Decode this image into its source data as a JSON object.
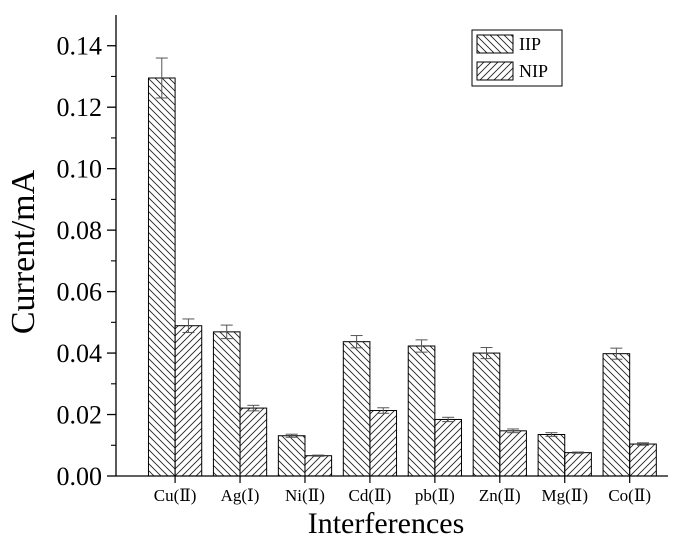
{
  "chart_data": {
    "type": "bar",
    "xlabel": "Interferences",
    "ylabel": "Current/mA",
    "categories": [
      "Cu(Ⅱ)",
      "Ag(Ⅰ)",
      "Ni(Ⅱ)",
      "Cd(Ⅱ)",
      "pb(Ⅱ)",
      "Zn(Ⅱ)",
      "Mg(Ⅱ)",
      "Co(Ⅱ)"
    ],
    "series": [
      {
        "name": "IIP",
        "values": [
          0.1295,
          0.0469,
          0.0131,
          0.0437,
          0.0423,
          0.04,
          0.0135,
          0.0398
        ],
        "errors": [
          0.0065,
          0.0022,
          0.0005,
          0.002,
          0.002,
          0.0018,
          0.0006,
          0.0018
        ],
        "hatch": "back-diagonal"
      },
      {
        "name": "NIP",
        "values": [
          0.0489,
          0.0221,
          0.0066,
          0.0213,
          0.0184,
          0.0147,
          0.0076,
          0.0104
        ],
        "errors": [
          0.0022,
          0.0009,
          0.0002,
          0.0009,
          0.0007,
          0.0006,
          0.0002,
          0.0004
        ],
        "hatch": "forward-diagonal"
      }
    ],
    "ylim": [
      0,
      0.15
    ],
    "yticks": [
      "0.00",
      "0.02",
      "0.04",
      "0.06",
      "0.08",
      "0.10",
      "0.12",
      "0.14"
    ],
    "legend_position": "top-right",
    "grid": false
  }
}
